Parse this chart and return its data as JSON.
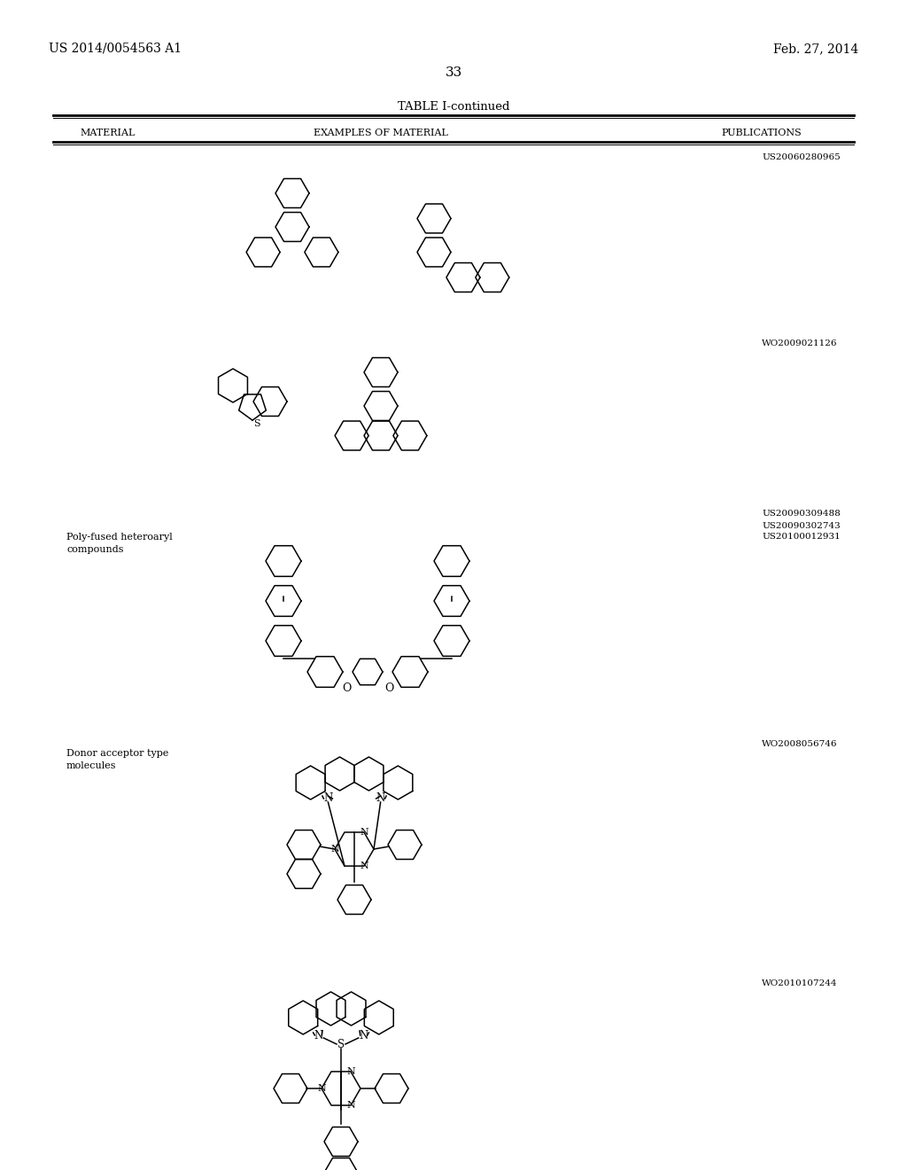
{
  "patent_number": "US 2014/0054563 A1",
  "date": "Feb. 27, 2014",
  "page_number": "33",
  "table_title": "TABLE I-continued",
  "col1_header": "MATERIAL",
  "col2_header": "EXAMPLES OF MATERIAL",
  "col3_header": "PUBLICATIONS",
  "bg_color": "#ffffff",
  "text_color": "#000000",
  "pub1": "US20060280965",
  "pub2": "WO2009021126",
  "pub3a": "US20090309488",
  "pub3b": "US20090302743",
  "pub3c": "US20100012931",
  "pub4": "WO2008056746",
  "pub5": "WO2010107244",
  "mat3": "Poly-fused heteroaryl",
  "mat3b": "compounds",
  "mat4": "Donor acceptor type",
  "mat4b": "molecules"
}
